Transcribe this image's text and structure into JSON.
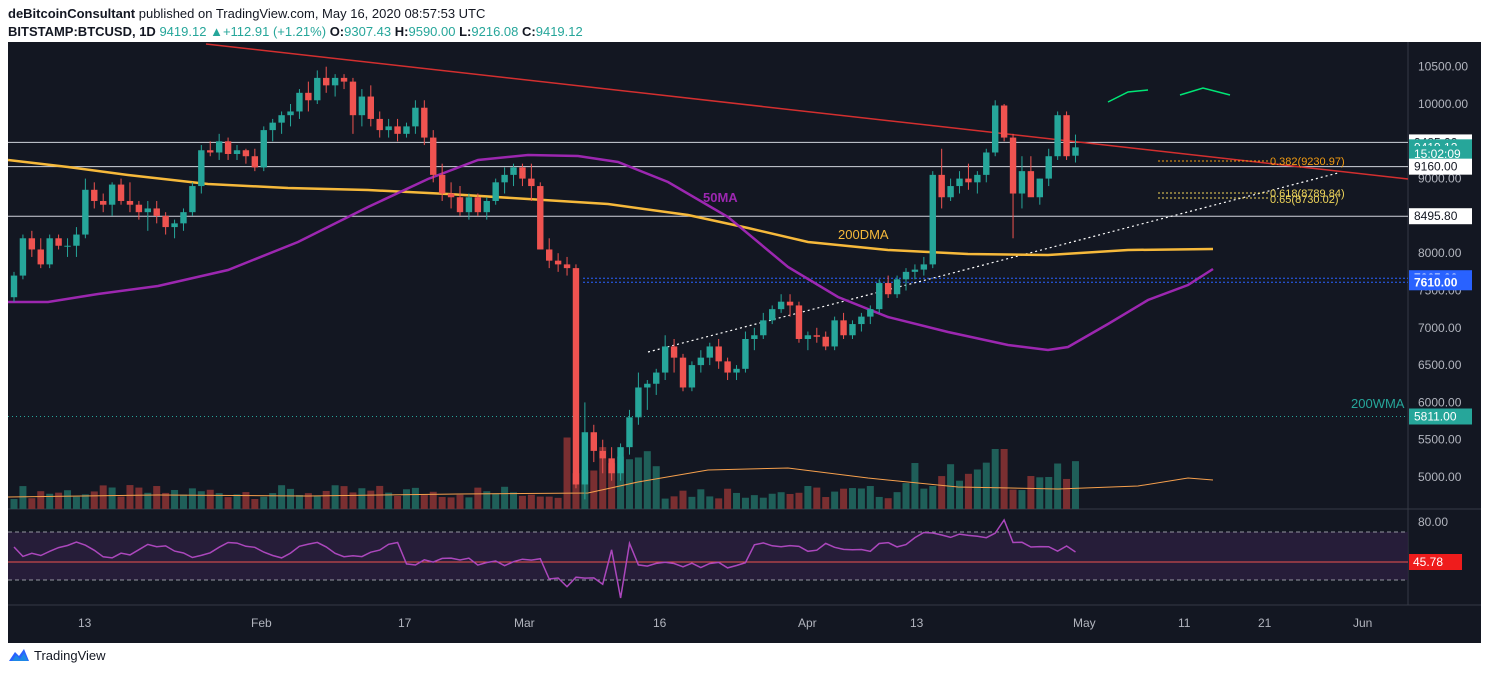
{
  "header": {
    "author": "deBitcoinConsultant",
    "published_text": "published on TradingView.com, May 16, 2020 08:57:53 UTC",
    "symbol": "BITSTAMP:BTCUSD, 1D",
    "last": "9419.12",
    "change": "+112.91 (+1.21%)",
    "open_label": "O:",
    "open": "9307.43",
    "high_label": "H:",
    "high": "9590.00",
    "low_label": "L:",
    "low": "9216.08",
    "close_label": "C:",
    "close": "9419.12"
  },
  "footer": {
    "brand": "TradingView"
  },
  "colors": {
    "bg": "#131722",
    "up": "#26a69a",
    "down": "#ef5350",
    "ma50": "#9c27b0",
    "dma200": "#f6b93b",
    "trend": "#d32f2f",
    "blue": "#2962ff",
    "rsi": "#ab47bc",
    "arc": "#00e676",
    "fib": "#f0d65a"
  },
  "chart_data": {
    "type": "candlestick",
    "price_axis": {
      "ylim": [
        4600,
        10800
      ],
      "ticks": [
        "10500.00",
        "10000.00",
        "9500.00",
        "9000.00",
        "8500.00",
        "8000.00",
        "7500.00",
        "7000.00",
        "6500.00",
        "6000.00",
        "5500.00",
        "5000.00"
      ]
    },
    "x_axis": {
      "ticks": [
        "13",
        "Feb",
        "17",
        "Mar",
        "16",
        "Apr",
        "13",
        "May",
        "11",
        "21",
        "Jun"
      ]
    },
    "price_tags": [
      {
        "label": "9485.00",
        "value": 9485,
        "style": "white"
      },
      {
        "label": "9419.12",
        "value": 9419.12,
        "style": "teal"
      },
      {
        "label": "15:02:09",
        "value": 9330,
        "style": "teal"
      },
      {
        "label": "9160.00",
        "value": 9160,
        "style": "white"
      },
      {
        "label": "8495.80",
        "value": 8495.8,
        "style": "white"
      },
      {
        "label": "7665.00",
        "value": 7665,
        "style": "blue"
      },
      {
        "label": "7610.00",
        "value": 7610,
        "style": "blue"
      },
      {
        "label": "5811.00",
        "value": 5811,
        "style": "teal"
      }
    ],
    "horizontal_levels": [
      9485,
      9160,
      8495.8
    ],
    "annotations": {
      "ma50": "50MA",
      "dma200": "200DMA",
      "wma200": "200WMA",
      "fib_0382": "0.382(9230.97)",
      "fib_0618": "0.618(8789.84)",
      "fib_065": "0.65(8730.02)"
    },
    "series": [
      {
        "name": "BTCUSD daily (approx)",
        "points_ohlc": [
          [
            7410,
            7750,
            7350,
            7700
          ],
          [
            7700,
            8250,
            7650,
            8200
          ],
          [
            8200,
            8300,
            7950,
            8050
          ],
          [
            8050,
            8200,
            7800,
            7850
          ],
          [
            7850,
            8250,
            7800,
            8200
          ],
          [
            8200,
            8250,
            8050,
            8100
          ],
          [
            8100,
            8200,
            7950,
            8100
          ],
          [
            8100,
            8350,
            7950,
            8250
          ],
          [
            8250,
            9000,
            8200,
            8850
          ],
          [
            8850,
            8950,
            8600,
            8700
          ],
          [
            8700,
            8800,
            8550,
            8650
          ],
          [
            8650,
            8950,
            8500,
            8920
          ],
          [
            8920,
            9000,
            8650,
            8700
          ],
          [
            8700,
            8950,
            8550,
            8650
          ],
          [
            8650,
            8700,
            8450,
            8550
          ],
          [
            8550,
            8700,
            8300,
            8600
          ],
          [
            8600,
            8700,
            8400,
            8500
          ],
          [
            8500,
            8550,
            8250,
            8350
          ],
          [
            8350,
            8450,
            8200,
            8400
          ],
          [
            8400,
            8600,
            8300,
            8550
          ],
          [
            8550,
            8950,
            8500,
            8900
          ],
          [
            8900,
            9450,
            8800,
            9380
          ],
          [
            9380,
            9500,
            9300,
            9350
          ],
          [
            9350,
            9600,
            9250,
            9500
          ],
          [
            9500,
            9550,
            9250,
            9330
          ],
          [
            9330,
            9450,
            9250,
            9380
          ],
          [
            9380,
            9400,
            9200,
            9300
          ],
          [
            9300,
            9400,
            9100,
            9150
          ],
          [
            9150,
            9700,
            9100,
            9650
          ],
          [
            9650,
            9800,
            9500,
            9750
          ],
          [
            9750,
            9900,
            9600,
            9850
          ],
          [
            9850,
            10000,
            9700,
            9900
          ],
          [
            9900,
            10200,
            9800,
            10150
          ],
          [
            10150,
            10300,
            9900,
            10050
          ],
          [
            10050,
            10450,
            10000,
            10350
          ],
          [
            10350,
            10500,
            10150,
            10250
          ],
          [
            10250,
            10400,
            10100,
            10350
          ],
          [
            10350,
            10400,
            10200,
            10300
          ],
          [
            10300,
            10350,
            9600,
            9850
          ],
          [
            9850,
            10200,
            9700,
            10100
          ],
          [
            10100,
            10250,
            9700,
            9800
          ],
          [
            9800,
            9900,
            9550,
            9650
          ],
          [
            9650,
            9800,
            9550,
            9700
          ],
          [
            9700,
            9800,
            9500,
            9600
          ],
          [
            9600,
            9750,
            9550,
            9700
          ],
          [
            9700,
            10050,
            9600,
            9950
          ],
          [
            9950,
            10050,
            9450,
            9550
          ],
          [
            9550,
            9650,
            8950,
            9050
          ],
          [
            9050,
            9200,
            8700,
            8800
          ],
          [
            8800,
            8950,
            8600,
            8750
          ],
          [
            8750,
            8900,
            8500,
            8550
          ],
          [
            8550,
            8800,
            8450,
            8750
          ],
          [
            8750,
            8800,
            8500,
            8550
          ],
          [
            8550,
            8750,
            8450,
            8700
          ],
          [
            8700,
            9000,
            8650,
            8950
          ],
          [
            8950,
            9150,
            8800,
            9050
          ],
          [
            9050,
            9200,
            8900,
            9150
          ],
          [
            9150,
            9200,
            8900,
            9000
          ],
          [
            9000,
            9200,
            8700,
            8900
          ],
          [
            8900,
            8950,
            8050,
            8050
          ],
          [
            8050,
            8200,
            7800,
            7900
          ],
          [
            7900,
            8000,
            7750,
            7850
          ],
          [
            7850,
            7950,
            7700,
            7800
          ],
          [
            7800,
            7850,
            4850,
            4900
          ],
          [
            4900,
            6000,
            4700,
            5600
          ],
          [
            5600,
            5700,
            5200,
            5350
          ],
          [
            5350,
            5500,
            5050,
            5250
          ],
          [
            5250,
            5400,
            4950,
            5050
          ],
          [
            5050,
            5450,
            4950,
            5400
          ],
          [
            5400,
            5900,
            5300,
            5800
          ],
          [
            5800,
            6400,
            5700,
            6200
          ],
          [
            6200,
            6300,
            5900,
            6250
          ],
          [
            6250,
            6450,
            6100,
            6400
          ],
          [
            6400,
            6900,
            6300,
            6750
          ],
          [
            6750,
            6850,
            6400,
            6600
          ],
          [
            6600,
            6650,
            6150,
            6200
          ],
          [
            6200,
            6550,
            6150,
            6500
          ],
          [
            6500,
            6700,
            6400,
            6600
          ],
          [
            6600,
            6800,
            6500,
            6750
          ],
          [
            6750,
            6850,
            6450,
            6550
          ],
          [
            6550,
            6600,
            6300,
            6400
          ],
          [
            6400,
            6500,
            6300,
            6450
          ],
          [
            6450,
            6950,
            6400,
            6850
          ],
          [
            6850,
            7000,
            6700,
            6900
          ],
          [
            6900,
            7200,
            6850,
            7100
          ],
          [
            7100,
            7300,
            7050,
            7250
          ],
          [
            7250,
            7450,
            7200,
            7350
          ],
          [
            7350,
            7450,
            7150,
            7300
          ],
          [
            7300,
            7350,
            6800,
            6850
          ],
          [
            6850,
            6950,
            6700,
            6900
          ],
          [
            6900,
            7000,
            6800,
            6880
          ],
          [
            6880,
            6950,
            6700,
            6750
          ],
          [
            6750,
            7150,
            6700,
            7100
          ],
          [
            7100,
            7200,
            6850,
            6900
          ],
          [
            6900,
            7100,
            6850,
            7050
          ],
          [
            7050,
            7200,
            6950,
            7150
          ],
          [
            7150,
            7300,
            7050,
            7250
          ],
          [
            7250,
            7650,
            7200,
            7600
          ],
          [
            7600,
            7700,
            7400,
            7450
          ],
          [
            7450,
            7700,
            7400,
            7650
          ],
          [
            7650,
            7800,
            7500,
            7750
          ],
          [
            7750,
            7850,
            7650,
            7780
          ],
          [
            7780,
            7950,
            7700,
            7850
          ],
          [
            7850,
            9100,
            7800,
            9050
          ],
          [
            9050,
            9400,
            8600,
            8750
          ],
          [
            8750,
            9000,
            8700,
            8900
          ],
          [
            8900,
            9100,
            8800,
            9000
          ],
          [
            9000,
            9200,
            8850,
            8950
          ],
          [
            8950,
            9100,
            8800,
            9050
          ],
          [
            9050,
            9400,
            8950,
            9350
          ],
          [
            9350,
            10050,
            9300,
            9980
          ],
          [
            9980,
            10000,
            9500,
            9550
          ],
          [
            9550,
            9600,
            8200,
            8800
          ],
          [
            8800,
            9300,
            8600,
            9100
          ],
          [
            9100,
            9300,
            8900,
            8750
          ],
          [
            8750,
            9000,
            8650,
            9000
          ],
          [
            9000,
            9400,
            8900,
            9300
          ],
          [
            9300,
            9900,
            9250,
            9850
          ],
          [
            9850,
            9900,
            9250,
            9300
          ],
          [
            9307,
            9590,
            9216,
            9419
          ]
        ]
      }
    ]
  }
}
